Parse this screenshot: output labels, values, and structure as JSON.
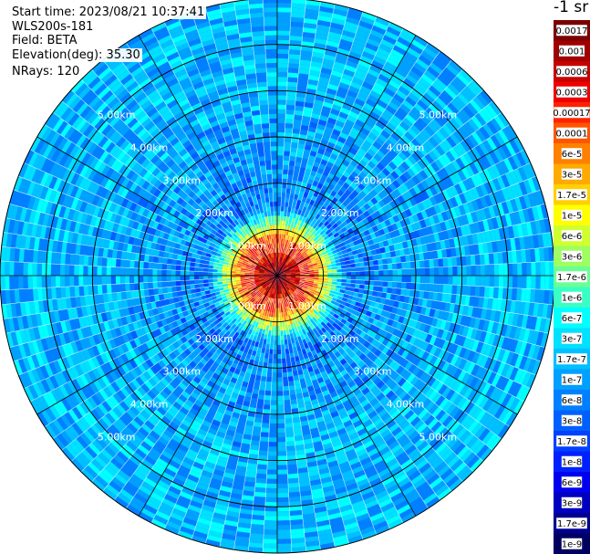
{
  "header": {
    "start_time": "Start time: 2023/08/21 10:37:41",
    "instrument": "WLS200s-181",
    "field": "Field: BETA",
    "elevation": "Elevation(deg): 35.30",
    "nrays": "NRays: 120"
  },
  "colorbar": {
    "title": "-1 sr",
    "labels": [
      "0.0017",
      "0.001",
      "0.0006",
      "0.0003",
      "0.00017",
      "0.0001",
      "6e-5",
      "3e-5",
      "1.7e-5",
      "1e-5",
      "6e-6",
      "3e-6",
      "1.7e-6",
      "1e-6",
      "6e-7",
      "3e-7",
      "1.7e-7",
      "1e-7",
      "6e-8",
      "3e-8",
      "1.7e-8",
      "1e-8",
      "6e-9",
      "3e-9",
      "1.7e-9",
      "1e-9"
    ],
    "colors": [
      "#7a0000",
      "#a00000",
      "#c80000",
      "#ee0000",
      "#ff2200",
      "#ff5500",
      "#ff8000",
      "#ffaa00",
      "#ffd000",
      "#ffff00",
      "#d0ff30",
      "#9dff60",
      "#6aff94",
      "#3affc4",
      "#00ffff",
      "#00e0ff",
      "#00c0ff",
      "#00a0ff",
      "#0080ff",
      "#0060ff",
      "#0040ff",
      "#0020ff",
      "#0000f0",
      "#0000c0",
      "#000090",
      "#000060"
    ]
  },
  "range_rings": {
    "labels": [
      "1.00km",
      "2.00km",
      "3.00km",
      "4.00km",
      "5.00km"
    ]
  },
  "chart_data": {
    "type": "heatmap",
    "subtype": "polar-ppi",
    "field": "BETA",
    "unit": "sr-1",
    "n_rays": 120,
    "elevation_deg": 35.3,
    "range_km": [
      0,
      6.0
    ],
    "range_ring_km": [
      1,
      2,
      3,
      4,
      5
    ],
    "azimuth_spokes": 12,
    "color_scale": "log",
    "value_range": [
      1e-09,
      0.0017
    ],
    "value_profile": [
      {
        "range_km": 0.2,
        "value": 0.0003
      },
      {
        "range_km": 0.5,
        "value": 0.00017
      },
      {
        "range_km": 0.75,
        "value": 0.0001
      },
      {
        "range_km": 1.0,
        "value": 1e-05
      },
      {
        "range_km": 1.5,
        "value": 6e-08
      },
      {
        "range_km": 2.5,
        "value": 1e-07
      },
      {
        "range_km": 4.0,
        "value": 1.7e-07
      },
      {
        "range_km": 5.5,
        "value": 1.7e-07
      }
    ]
  }
}
